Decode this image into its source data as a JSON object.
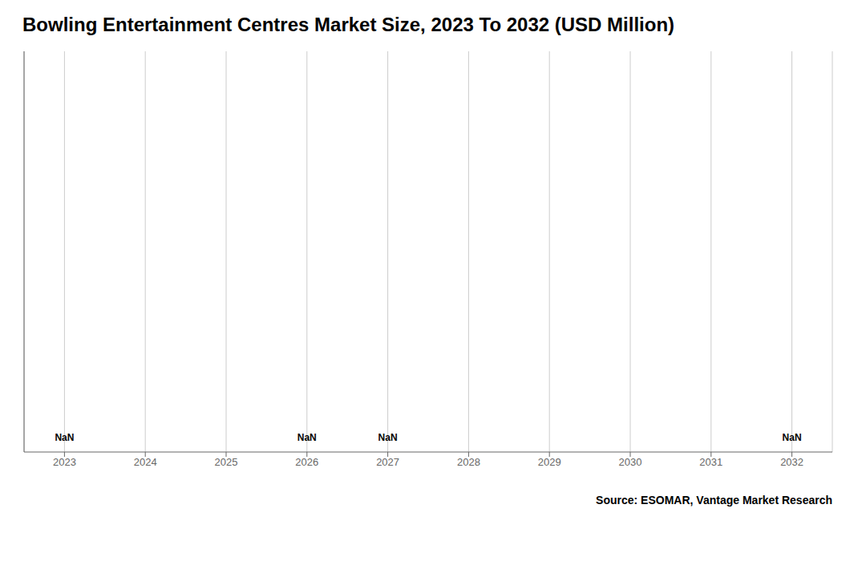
{
  "chart_data": {
    "type": "bar",
    "title": "Bowling Entertainment Centres Market Size, 2023 To 2032 (USD Million)",
    "categories": [
      "2023",
      "2024",
      "2025",
      "2026",
      "2027",
      "2028",
      "2029",
      "2030",
      "2031",
      "2032"
    ],
    "values": [
      null,
      null,
      null,
      null,
      null,
      null,
      null,
      null,
      null,
      null
    ],
    "ylim": [
      0,
      1
    ],
    "grid": "x",
    "tick_labels": "x",
    "annotations": [
      {
        "text": "NaN",
        "x": "2023"
      },
      {
        "text": "NaN",
        "x": "2026"
      },
      {
        "text": "NaN",
        "x": "2027"
      },
      {
        "text": "NaN",
        "x": "2032"
      },
      {
        "text": "Source: ESOMAR, Vantage Market Research"
      }
    ]
  }
}
